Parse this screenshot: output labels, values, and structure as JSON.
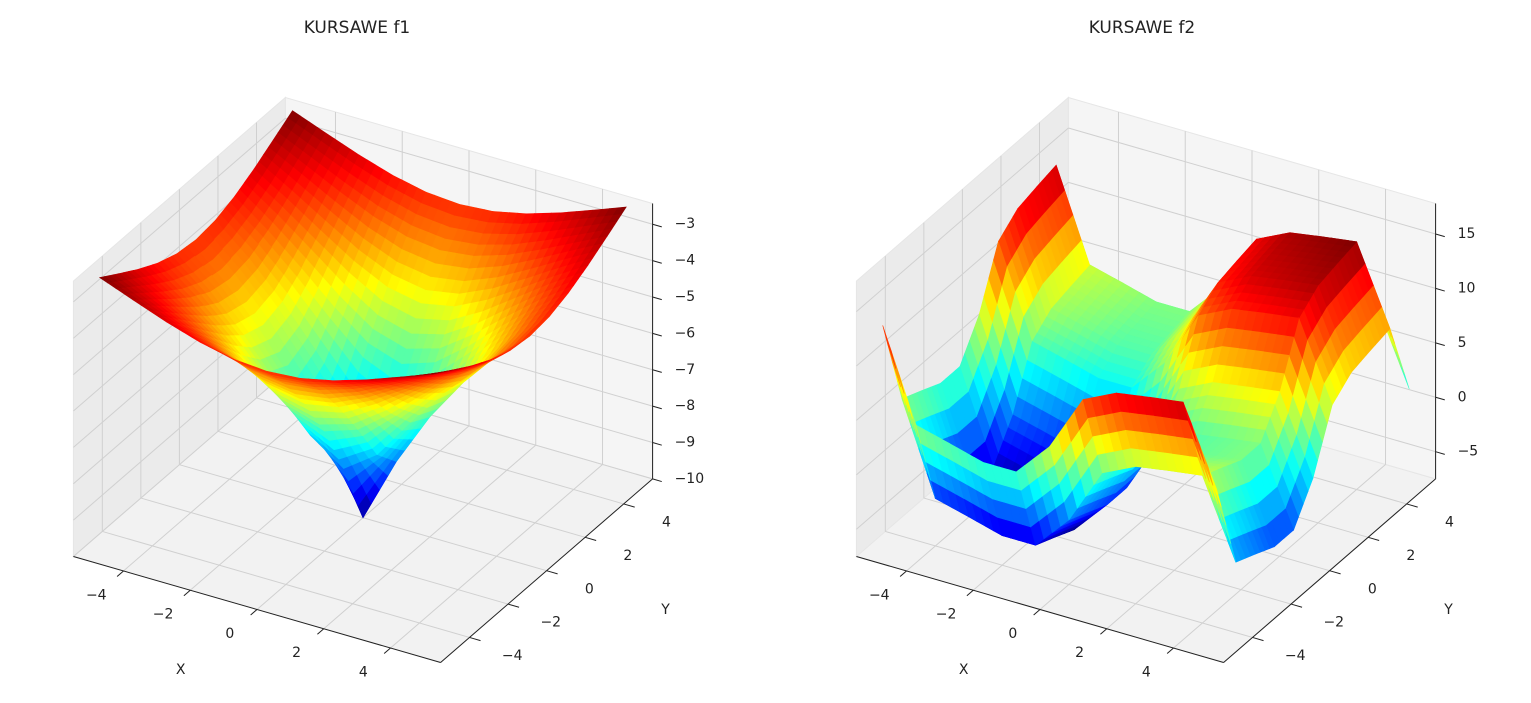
{
  "chart_data": [
    {
      "type": "surface",
      "title": "KURSAWE f1",
      "xlabel": "X",
      "ylabel": "Y",
      "colormap": "jet",
      "grid": true,
      "x": [
        -5,
        -4,
        -3,
        -2,
        -1,
        0,
        1,
        2,
        3,
        4,
        5
      ],
      "y": [
        -5,
        -4,
        -3,
        -2,
        -1,
        0,
        1,
        2,
        3,
        4,
        5
      ],
      "z": [
        [
          -2.43,
          -2.78,
          -3.12,
          -3.41,
          -3.61,
          -3.68,
          -3.61,
          -3.41,
          -3.12,
          -2.78,
          -2.43
        ],
        [
          -2.78,
          -3.23,
          -3.68,
          -4.09,
          -4.38,
          -4.49,
          -4.38,
          -4.09,
          -3.68,
          -3.23,
          -2.78
        ],
        [
          -3.12,
          -3.68,
          -4.28,
          -4.86,
          -5.31,
          -5.49,
          -5.31,
          -4.86,
          -4.28,
          -3.68,
          -3.12
        ],
        [
          -3.41,
          -4.09,
          -4.86,
          -5.68,
          -6.39,
          -6.7,
          -6.39,
          -5.68,
          -4.86,
          -4.09,
          -3.41
        ],
        [
          -3.61,
          -4.38,
          -5.31,
          -6.39,
          -7.54,
          -8.19,
          -7.54,
          -6.39,
          -5.31,
          -4.38,
          -3.61
        ],
        [
          -3.68,
          -4.49,
          -5.49,
          -6.7,
          -8.19,
          -10,
          -8.19,
          -6.7,
          -5.49,
          -4.49,
          -3.68
        ],
        [
          -3.61,
          -4.38,
          -5.31,
          -6.39,
          -7.54,
          -8.19,
          -7.54,
          -6.39,
          -5.31,
          -4.38,
          -3.61
        ],
        [
          -3.41,
          -4.09,
          -4.86,
          -5.68,
          -6.39,
          -6.7,
          -6.39,
          -5.68,
          -4.86,
          -4.09,
          -3.41
        ],
        [
          -3.12,
          -3.68,
          -4.28,
          -4.86,
          -5.31,
          -5.49,
          -5.31,
          -4.86,
          -4.28,
          -3.68,
          -3.12
        ],
        [
          -2.78,
          -3.23,
          -3.68,
          -4.09,
          -4.38,
          -4.49,
          -4.38,
          -4.09,
          -3.68,
          -3.23,
          -2.78
        ],
        [
          -2.43,
          -2.78,
          -3.12,
          -3.41,
          -3.61,
          -3.68,
          -3.61,
          -3.41,
          -3.12,
          -2.78,
          -2.43
        ]
      ],
      "xlim": [
        -5.5,
        5.5
      ],
      "ylim": [
        -5.5,
        5.5
      ],
      "zlim": [
        -10,
        -2.43
      ],
      "xticks": [
        {
          "value": -4,
          "label": "−4"
        },
        {
          "value": -2,
          "label": "−2"
        },
        0,
        2,
        4
      ],
      "yticks": [
        {
          "value": -4,
          "label": "−4"
        },
        {
          "value": -2,
          "label": "−2"
        },
        0,
        2,
        4
      ],
      "zticks": [
        {
          "value": -10,
          "label": "−10"
        },
        {
          "value": -9,
          "label": "−9"
        },
        {
          "value": -8,
          "label": "−8"
        },
        {
          "value": -7,
          "label": "−7"
        },
        {
          "value": -6,
          "label": "−6"
        },
        {
          "value": -5,
          "label": "−5"
        },
        {
          "value": -4,
          "label": "−4"
        },
        {
          "value": -3,
          "label": "−3"
        }
      ]
    },
    {
      "type": "surface",
      "title": "KURSAWE f2",
      "xlabel": "X",
      "ylabel": "Y",
      "colormap": "jet",
      "grid": true,
      "x": [
        -5,
        -4,
        -3,
        -2,
        -1,
        0,
        1,
        2,
        3,
        4,
        5
      ],
      "y": [
        -5,
        -4,
        -3,
        -2,
        -1,
        0,
        1,
        2,
        3,
        4,
        5
      ],
      "z": [
        [
          13.4,
          5.13,
          4.33,
          3.49,
          3.49,
          6.7,
          11.91,
          13.39,
          13.89,
          14.33,
          7.24
        ],
        [
          5.13,
          -3.14,
          -3.94,
          -4.78,
          -4.78,
          -1.57,
          3.64,
          5.12,
          5.62,
          6.06,
          -1.03
        ],
        [
          4.33,
          -3.94,
          -4.74,
          -5.58,
          -5.58,
          -2.37,
          2.84,
          4.32,
          4.82,
          5.26,
          -1.83
        ],
        [
          3.49,
          -4.78,
          -5.58,
          -6.42,
          -6.42,
          -3.21,
          2.0,
          3.48,
          3.98,
          4.42,
          -2.67
        ],
        [
          3.49,
          -4.78,
          -5.58,
          -6.42,
          -6.42,
          -3.21,
          2.0,
          3.48,
          3.98,
          4.42,
          -2.67
        ],
        [
          6.7,
          -1.57,
          -2.37,
          -3.21,
          -3.21,
          0,
          5.21,
          6.69,
          7.19,
          7.63,
          0.54
        ],
        [
          11.91,
          3.64,
          2.84,
          2.0,
          2.0,
          5.21,
          10.42,
          11.9,
          12.4,
          12.84,
          5.75
        ],
        [
          13.39,
          5.12,
          4.32,
          3.48,
          3.48,
          6.69,
          11.9,
          13.38,
          13.88,
          14.32,
          7.23
        ],
        [
          13.89,
          5.62,
          4.82,
          3.98,
          3.98,
          7.19,
          12.4,
          13.88,
          14.38,
          14.82,
          7.73
        ],
        [
          14.33,
          6.06,
          5.26,
          4.42,
          4.42,
          7.63,
          12.84,
          14.32,
          14.82,
          15.26,
          8.17
        ],
        [
          7.24,
          -1.03,
          -1.83,
          -2.67,
          -2.67,
          0.54,
          5.75,
          7.23,
          7.73,
          8.17,
          1.08
        ]
      ],
      "xlim": [
        -5.5,
        5.5
      ],
      "ylim": [
        -5.5,
        5.5
      ],
      "zlim": [
        -7.5,
        17.8
      ],
      "xticks": [
        {
          "value": -4,
          "label": "−4"
        },
        {
          "value": -2,
          "label": "−2"
        },
        0,
        2,
        4
      ],
      "yticks": [
        {
          "value": -4,
          "label": "−4"
        },
        {
          "value": -2,
          "label": "−2"
        },
        0,
        2,
        4
      ],
      "zticks": [
        {
          "value": -5,
          "label": "−5"
        },
        0,
        5,
        10,
        15
      ]
    }
  ]
}
